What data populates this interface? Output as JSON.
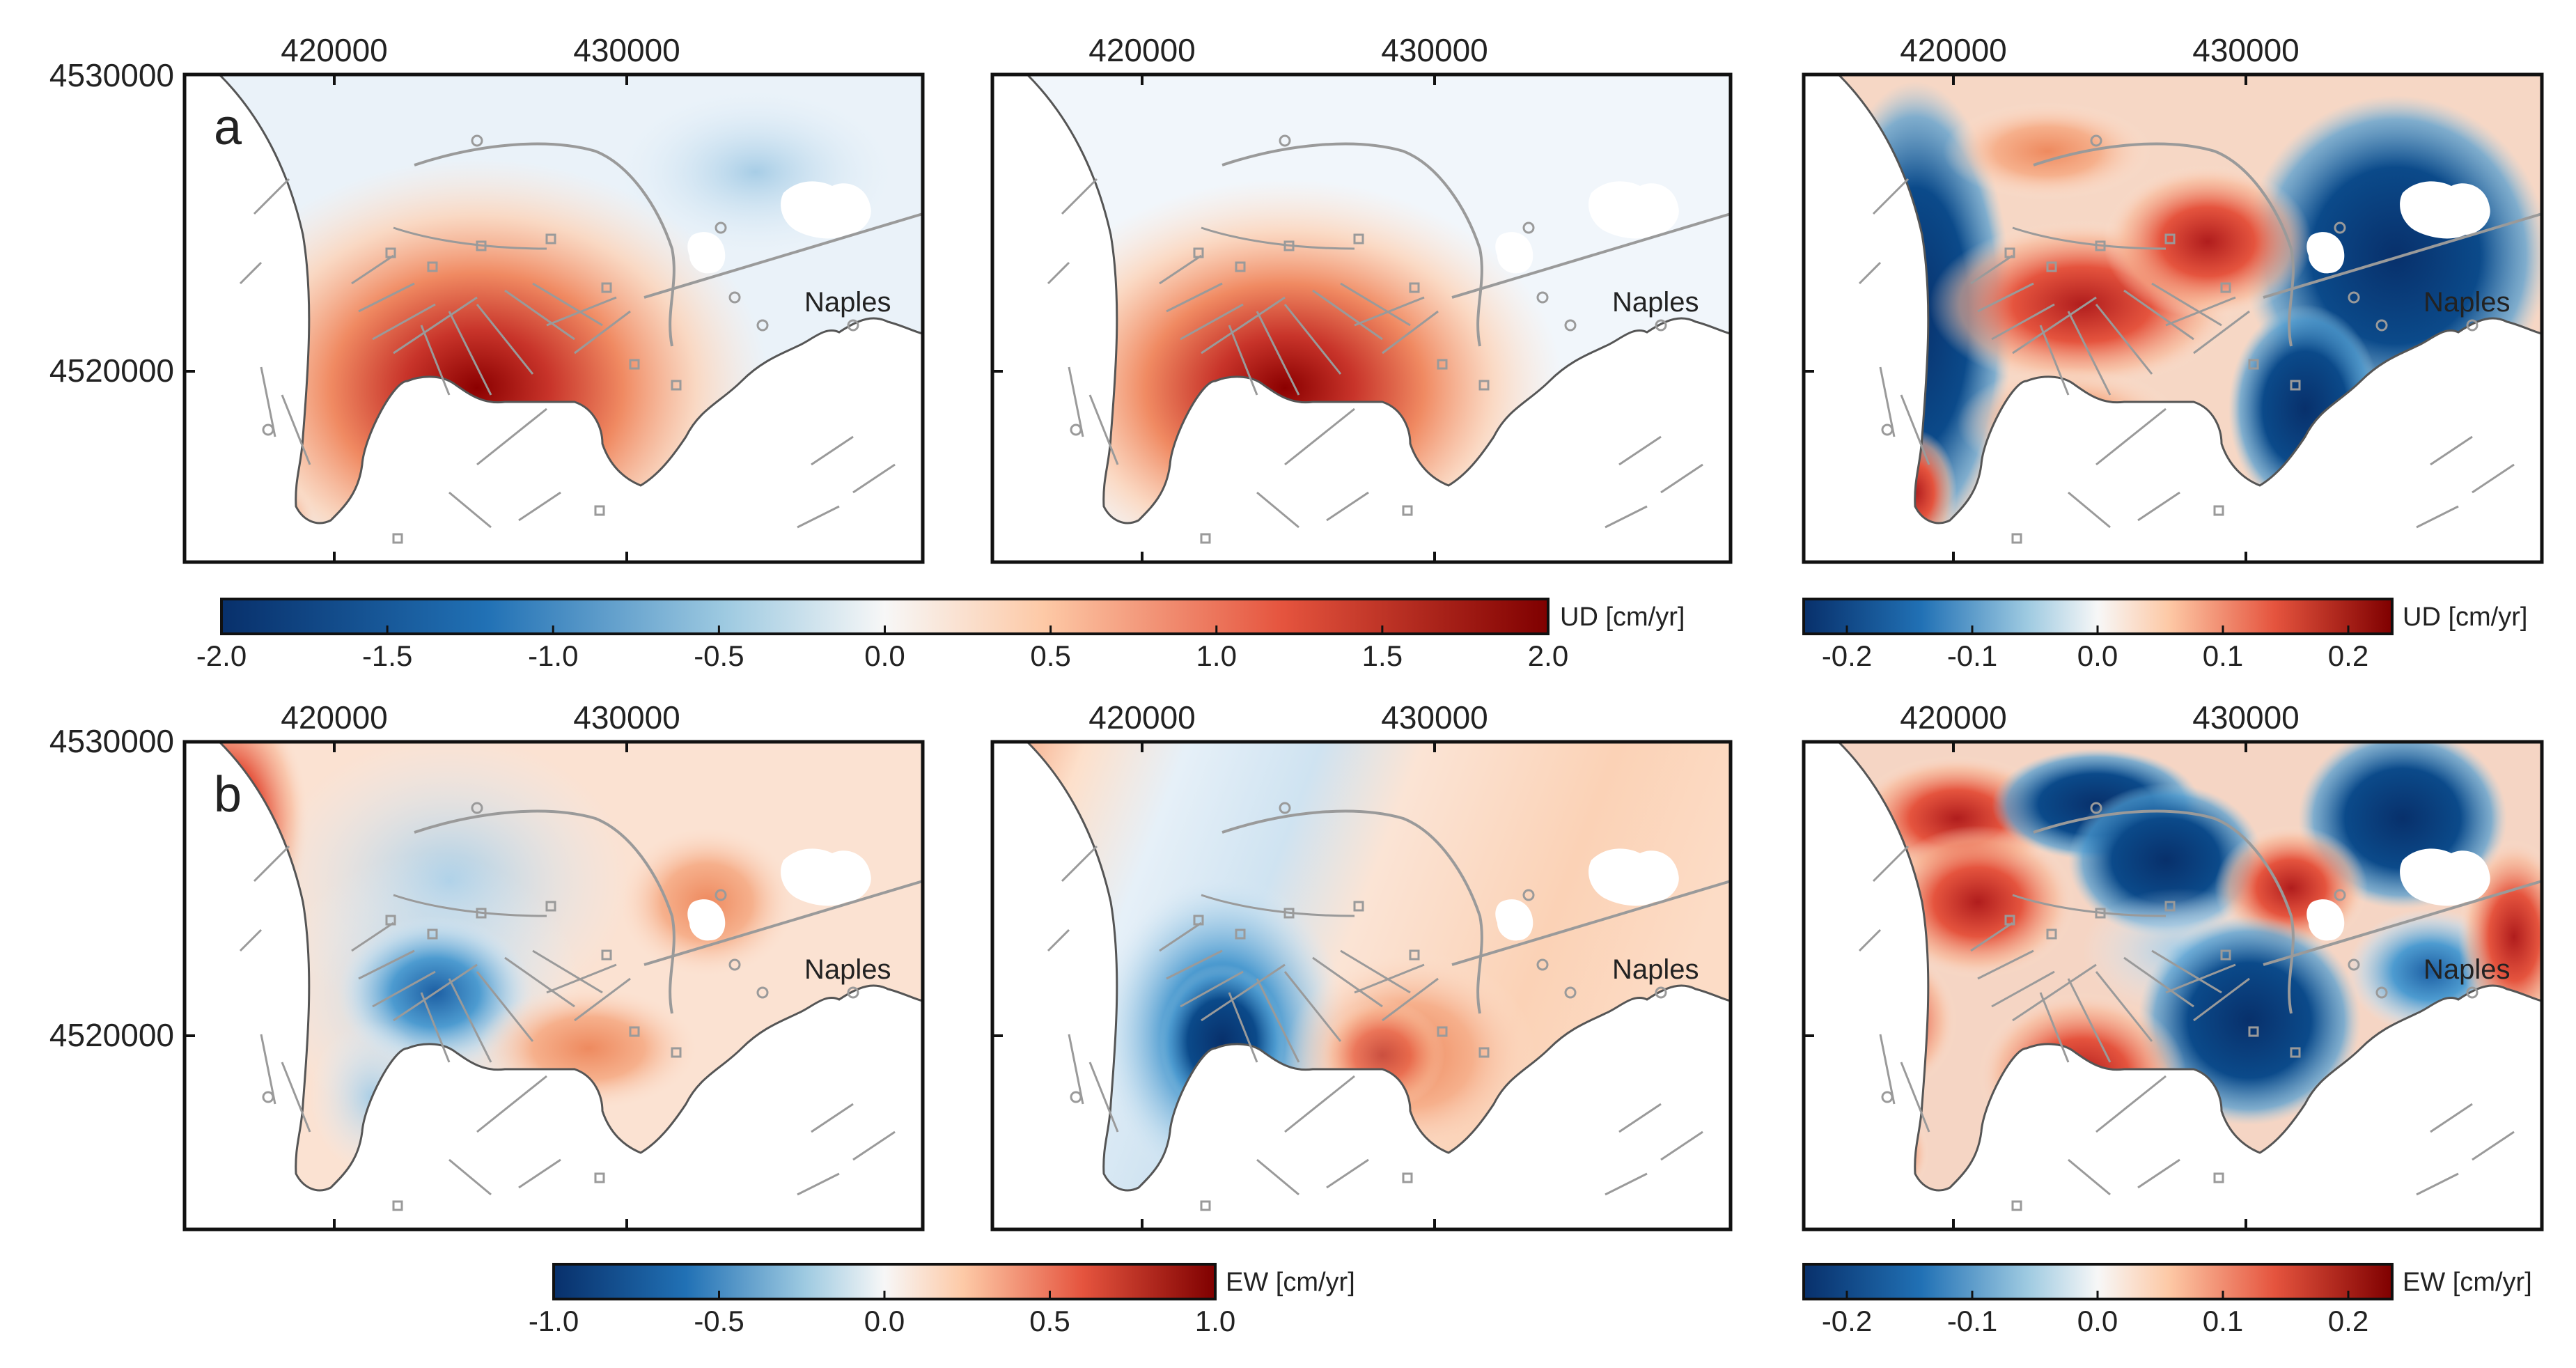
{
  "figure": {
    "rows": [
      {
        "label": "a",
        "x_ticks": [
          "420000",
          "430000"
        ],
        "y_ticks": [
          "4530000",
          "4520000"
        ],
        "city": "Naples",
        "panels": [
          "ud-observed",
          "ud-model",
          "ud-residual"
        ]
      },
      {
        "label": "b",
        "x_ticks": [
          "420000",
          "430000"
        ],
        "y_ticks": [
          "4530000",
          "4520000"
        ],
        "city": "Naples",
        "panels": [
          "ew-observed",
          "ew-model",
          "ew-residual"
        ]
      }
    ],
    "colorbars": {
      "ud_main": {
        "unit": "UD [cm/yr]",
        "ticks": [
          "-2.0",
          "-1.5",
          "-1.0",
          "-0.5",
          "0.0",
          "0.5",
          "1.0",
          "1.5",
          "2.0"
        ]
      },
      "ud_residual": {
        "unit": "UD [cm/yr]",
        "ticks": [
          "-0.2",
          "-0.1",
          "0.0",
          "0.1",
          "0.2"
        ]
      },
      "ew_main": {
        "unit": "EW [cm/yr]",
        "ticks": [
          "-1.0",
          "-0.5",
          "0.0",
          "0.5",
          "1.0"
        ]
      },
      "ew_residual": {
        "unit": "EW [cm/yr]",
        "ticks": [
          "-0.2",
          "-0.1",
          "0.0",
          "0.1",
          "0.2"
        ]
      }
    },
    "colors": {
      "dark_blue": "#08306b",
      "mid_blue": "#4d9bd0",
      "white": "#f7f7f7",
      "light_red": "#f5a583",
      "dark_red": "#7f0000",
      "coastline": "#555555",
      "faults": "#9a9a9a"
    }
  }
}
